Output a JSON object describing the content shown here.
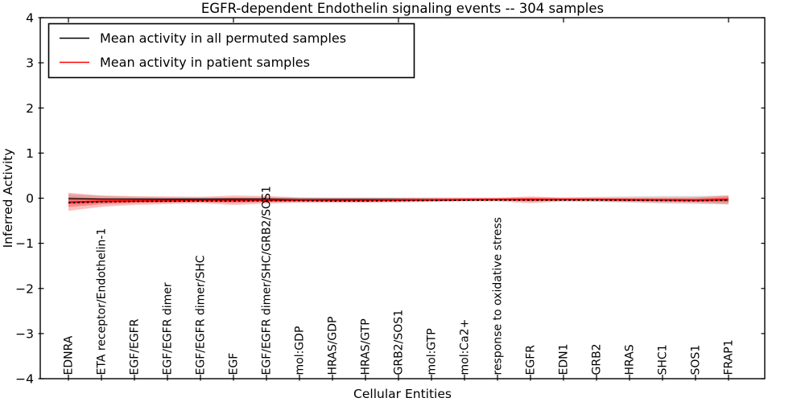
{
  "chart_data": {
    "type": "line",
    "title": "EGFR-dependent Endothelin signaling events -- 304 samples",
    "xlabel": "Cellular Entities",
    "ylabel": "Inferred Activity",
    "ylim": [
      -4,
      4
    ],
    "yticks": [
      -4,
      -3,
      -2,
      -1,
      0,
      1,
      2,
      3,
      4
    ],
    "ytick_labels": [
      "−4",
      "−3",
      "−2",
      "−1",
      "0",
      "1",
      "2",
      "3",
      "4"
    ],
    "grid": false,
    "legend_position": "upper left",
    "categories": [
      "EDNRA",
      "ETA receptor/Endothelin-1",
      "EGF/EGFR",
      "EGF/EGFR dimer",
      "EGF/EGFR dimer/SHC",
      "EGF",
      "EGF/EGFR dimer/SHC/GRB2/SOS1",
      "mol:GDP",
      "HRAS/GDP",
      "HRAS/GTP",
      "GRB2/SOS1",
      "mol:GTP",
      "mol:Ca2+",
      "response to oxidative stress",
      "EGFR",
      "EDN1",
      "GRB2",
      "HRAS",
      "SHC1",
      "SOS1",
      "FRAP1"
    ],
    "series": [
      {
        "name": "Mean activity in all permuted samples",
        "color": "#000000",
        "values": [
          -0.01,
          -0.02,
          -0.02,
          -0.02,
          -0.02,
          -0.02,
          -0.02,
          -0.03,
          -0.03,
          -0.03,
          -0.03,
          -0.03,
          -0.03,
          -0.03,
          -0.03,
          -0.03,
          -0.03,
          -0.03,
          -0.04,
          -0.04,
          -0.04
        ]
      },
      {
        "name": "Mean activity in patient samples",
        "color": "#ff0000",
        "values": [
          -0.09,
          -0.07,
          -0.06,
          -0.055,
          -0.05,
          -0.05,
          -0.045,
          -0.045,
          -0.05,
          -0.05,
          -0.045,
          -0.04,
          -0.035,
          -0.03,
          -0.03,
          -0.03,
          -0.03,
          -0.035,
          -0.04,
          -0.045,
          -0.03
        ]
      }
    ],
    "bands": [
      {
        "name": "permuted-samples-range",
        "color": "#999999",
        "alpha": 0.35,
        "upper": [
          0.09,
          0.05,
          0.03,
          0.02,
          0.02,
          0.02,
          0.02,
          0.01,
          0.01,
          0.01,
          0.01,
          0.01,
          0.01,
          0.01,
          0.01,
          0.02,
          0.03,
          0.04,
          0.05,
          0.05,
          0.06
        ],
        "lower": [
          -0.13,
          -0.1,
          -0.08,
          -0.07,
          -0.07,
          -0.07,
          -0.07,
          -0.07,
          -0.07,
          -0.07,
          -0.06,
          -0.06,
          -0.06,
          -0.06,
          -0.06,
          -0.07,
          -0.08,
          -0.1,
          -0.12,
          -0.13,
          -0.14
        ]
      },
      {
        "name": "patient-samples-range",
        "color": "#ff0000",
        "alpha": 0.25,
        "upper": [
          0.12,
          0.06,
          0.045,
          0.04,
          0.03,
          0.06,
          0.05,
          0.02,
          0.015,
          0.015,
          0.01,
          0.01,
          0.01,
          0.01,
          0.04,
          0.01,
          0.01,
          0.01,
          0.015,
          0.02,
          0.06
        ],
        "lower": [
          -0.28,
          -0.19,
          -0.15,
          -0.13,
          -0.11,
          -0.15,
          -0.12,
          -0.1,
          -0.1,
          -0.1,
          -0.09,
          -0.08,
          -0.07,
          -0.07,
          -0.11,
          -0.07,
          -0.07,
          -0.08,
          -0.09,
          -0.1,
          -0.13
        ]
      }
    ]
  }
}
